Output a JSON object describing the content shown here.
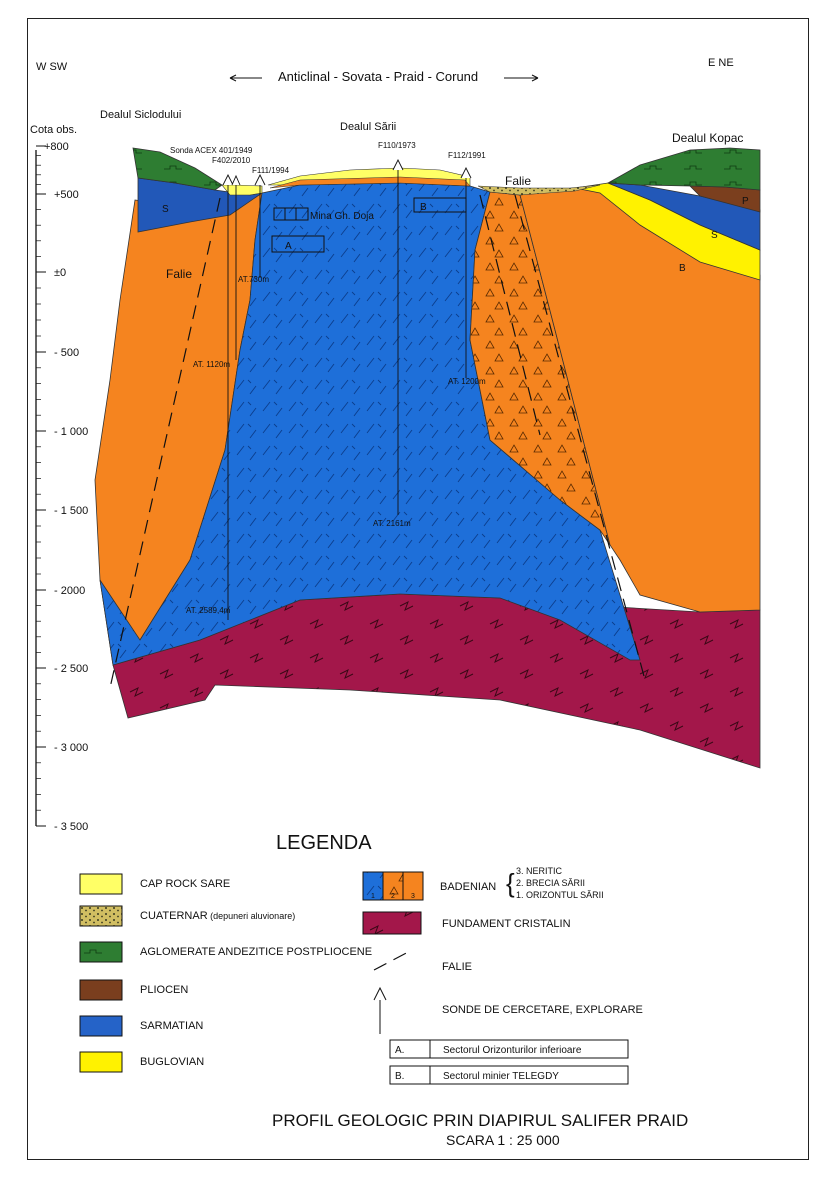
{
  "header": {
    "west": "W SW",
    "east": "E NE",
    "anticline": "Anticlinal - Sovata - Praid - Corund"
  },
  "places": {
    "siclod": "Dealul Siclodului",
    "sarii": "Dealul Sării",
    "kopac": "Dealul Kopac"
  },
  "axis": {
    "title": "Cota obs.",
    "ticks": [
      "+800",
      "+500",
      "±0",
      "- 500",
      "- 1 000",
      "- 1 500",
      "- 2000",
      "- 2 500",
      "- 3 000",
      "- 3 500"
    ]
  },
  "wells": {
    "acex": "Sonda ACEX 401/1949",
    "f402": "F402/2010",
    "f111": "F111/1994",
    "f110": "F110/1973",
    "f112": "F112/1991",
    "at730": "AT.730m",
    "at1120": "AT. 1120m",
    "at1200": "AT. 1200m",
    "at2161": "AT. 2161m",
    "at2589": "AT. 2589,4m"
  },
  "section": {
    "falie_left": "Falie",
    "falie_right": "Falie",
    "mine": "Mina Gh. Doja",
    "box_a": "A",
    "box_b": "B",
    "label_s_left": "S",
    "label_s_right": "S",
    "label_b_right": "B",
    "label_p_right": "P"
  },
  "legend": {
    "title": "LEGENDA",
    "left": [
      {
        "label": "CAP ROCK SARE",
        "color": "#FFFF44"
      },
      {
        "label": "CUATERNAR",
        "extra": "(depuneri aluvionare)",
        "color": "#C8B44A"
      },
      {
        "label": "AGLOMERATE ANDEZITICE POSTPLIOCENE",
        "color": "#2E7D2E"
      },
      {
        "label": "PLIOCEN",
        "color": "#7A3E1E"
      },
      {
        "label": "SARMATIAN",
        "color": "#2563C8"
      },
      {
        "label": "BUGLOVIAN",
        "color": "#FFF200"
      }
    ],
    "badenian": {
      "label": "BADENIAN",
      "sub3": "3. NERITIC",
      "sub2": "2. BRECIA SĂRII",
      "sub1": "1. ORIZONTUL SĂRII",
      "n1": "1",
      "n2": "2",
      "n3": "3"
    },
    "fundament": "FUNDAMENT CRISTALIN",
    "falie": "FALIE",
    "sonde": "SONDE DE CERCETARE, EXPLORARE",
    "sector_a_key": "A.",
    "sector_a": "Sectorul Orizonturilor inferioare",
    "sector_b_key": "B.",
    "sector_b": "Sectorul minier TELEGDY"
  },
  "footer": {
    "title": "PROFIL GEOLOGIC PRIN DIAPIRUL SALIFER PRAID",
    "scale": "SCARA 1 : 25 000"
  },
  "colors": {
    "salt": "#1E6FD9",
    "badenian_orange": "#F5841F",
    "fundament": "#A3174A",
    "sarmatian": "#2258B8",
    "buglovian": "#FFF200",
    "aglomerate": "#2E7D32",
    "pliocen": "#7B3F1E",
    "caprock": "#FFFF66"
  }
}
